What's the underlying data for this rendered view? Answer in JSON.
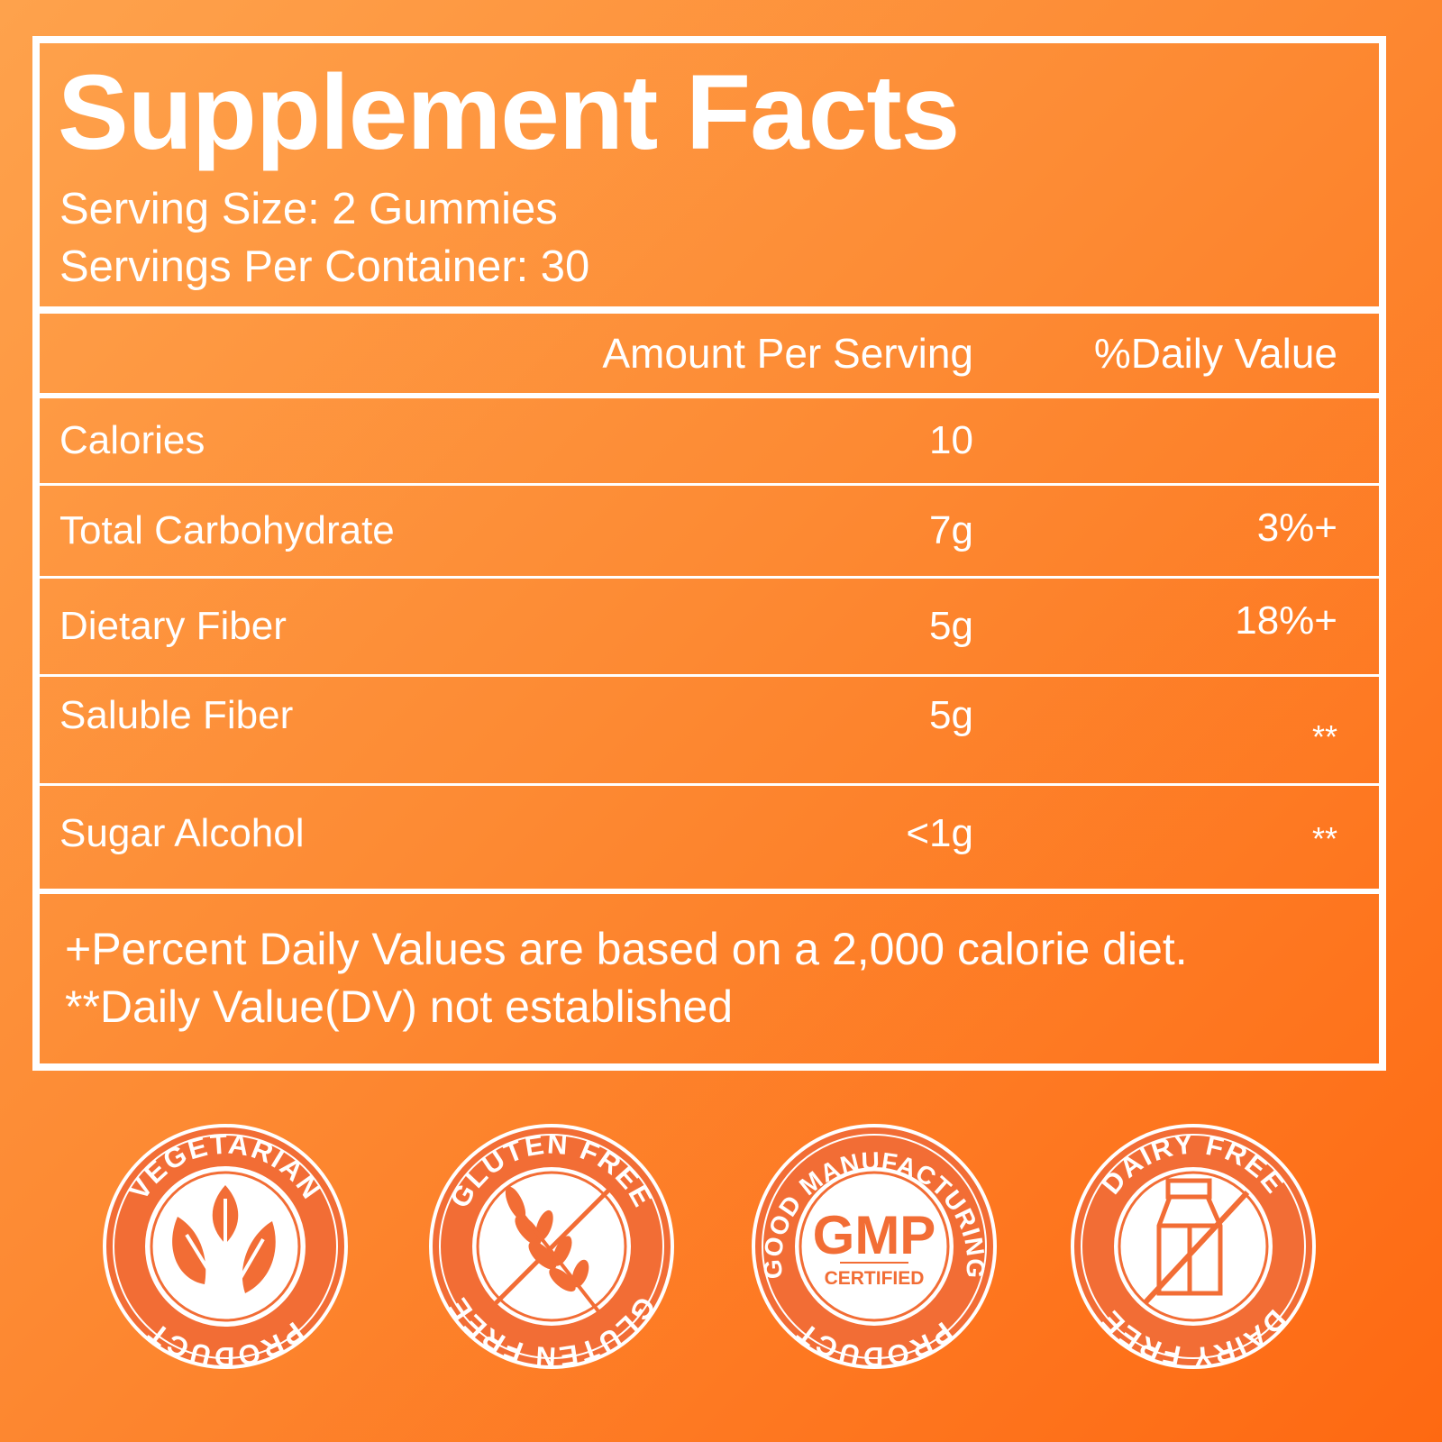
{
  "label": {
    "title": "Supplement Facts",
    "serving_size": "Serving Size: 2 Gummies",
    "servings_per_container": "Servings Per Container: 30",
    "columns": {
      "amount": "Amount Per Serving",
      "daily_value": "%Daily Value"
    },
    "rows": [
      {
        "name": "Calories",
        "amount": "10",
        "dv": ""
      },
      {
        "name": "Total Carbohydrate",
        "amount": "7g",
        "dv": "3%+"
      },
      {
        "name": "Dietary Fiber",
        "amount": "5g",
        "dv": "18%+"
      },
      {
        "name": "Saluble Fiber",
        "amount": "5g",
        "dv": "**"
      },
      {
        "name": "Sugar Alcohol",
        "amount": "<1g",
        "dv": "**"
      }
    ],
    "footnotes": [
      "+Percent Daily Values are based on a 2,000 calorie diet.",
      "**Daily Value(DV) not established"
    ]
  },
  "badges": [
    {
      "top": "VEGETARIAN",
      "bottom": "PRODUCT",
      "icon": "leaves-icon"
    },
    {
      "top": "GLUTEN FREE",
      "bottom": "GLUTEN FREE",
      "icon": "wheat-crossed-icon"
    },
    {
      "top": "GOOD MANUFACTURING",
      "bottom": "PRODUCT",
      "icon": "gmp-icon",
      "center": "GMP",
      "sub": "CERTIFIED"
    },
    {
      "top": "DAIRY FREE",
      "bottom": "DAIRY FREE",
      "icon": "milk-carton-crossed-icon"
    }
  ],
  "colors": {
    "background_start": "#fea24c",
    "background_end": "#fe6912",
    "badge": "#f26d35",
    "text": "#ffffff"
  }
}
